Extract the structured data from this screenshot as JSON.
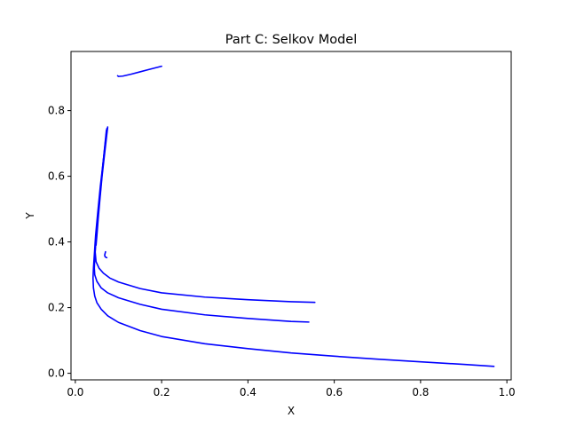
{
  "chart_data": {
    "type": "line",
    "title": "Part C: Selkov Model",
    "xlabel": "X",
    "ylabel": "Y",
    "xlim": [
      -0.01,
      1.01
    ],
    "ylim": [
      -0.02,
      0.98
    ],
    "xticks": [
      0.0,
      0.2,
      0.4,
      0.6,
      0.8,
      1.0
    ],
    "xtick_labels": [
      "0.0",
      "0.2",
      "0.4",
      "0.6",
      "0.8",
      "1.0"
    ],
    "yticks": [
      0.0,
      0.2,
      0.4,
      0.6,
      0.8
    ],
    "ytick_labels": [
      "0.0",
      "0.2",
      "0.4",
      "0.6",
      "0.8"
    ],
    "grid": false,
    "line_color": "#0000ff",
    "series": [
      {
        "x": [
          0.075,
          0.068,
          0.062,
          0.057,
          0.053,
          0.05,
          0.048
        ],
        "y": [
          0.75,
          0.67,
          0.6,
          0.53,
          0.47,
          0.42,
          0.39
        ]
      },
      {
        "x": [
          0.072,
          0.065,
          0.059,
          0.054,
          0.05,
          0.047,
          0.045,
          0.044,
          0.045,
          0.05,
          0.06,
          0.075,
          0.1,
          0.15,
          0.2,
          0.3,
          0.4,
          0.5,
          0.541
        ],
        "y": [
          0.74,
          0.65,
          0.57,
          0.5,
          0.44,
          0.39,
          0.35,
          0.32,
          0.3,
          0.28,
          0.26,
          0.245,
          0.23,
          0.21,
          0.195,
          0.178,
          0.167,
          0.158,
          0.156
        ]
      },
      {
        "x": [
          0.073,
          0.066,
          0.06,
          0.055,
          0.05,
          0.047,
          0.046,
          0.048,
          0.055,
          0.065,
          0.08,
          0.1,
          0.15,
          0.2,
          0.3,
          0.4,
          0.5,
          0.555
        ],
        "y": [
          0.745,
          0.66,
          0.58,
          0.51,
          0.45,
          0.4,
          0.37,
          0.34,
          0.32,
          0.305,
          0.29,
          0.278,
          0.258,
          0.245,
          0.232,
          0.224,
          0.218,
          0.216
        ]
      },
      {
        "x": [
          0.074,
          0.066,
          0.058,
          0.052,
          0.047,
          0.044,
          0.042,
          0.041,
          0.042,
          0.045,
          0.05,
          0.06,
          0.075,
          0.1,
          0.15,
          0.2,
          0.3,
          0.4,
          0.5,
          0.6,
          0.7,
          0.8,
          0.9,
          0.97
        ],
        "y": [
          0.745,
          0.66,
          0.57,
          0.49,
          0.42,
          0.36,
          0.32,
          0.29,
          0.26,
          0.235,
          0.215,
          0.195,
          0.175,
          0.155,
          0.13,
          0.112,
          0.09,
          0.075,
          0.062,
          0.052,
          0.043,
          0.035,
          0.027,
          0.021
        ]
      },
      {
        "x": [
          0.07,
          0.068,
          0.069,
          0.071,
          0.073
        ],
        "y": [
          0.37,
          0.36,
          0.355,
          0.353,
          0.352
        ]
      },
      {
        "x": [
          0.098,
          0.1,
          0.11,
          0.13,
          0.15,
          0.17,
          0.2
        ],
        "y": [
          0.906,
          0.904,
          0.905,
          0.911,
          0.918,
          0.925,
          0.935
        ]
      }
    ]
  }
}
